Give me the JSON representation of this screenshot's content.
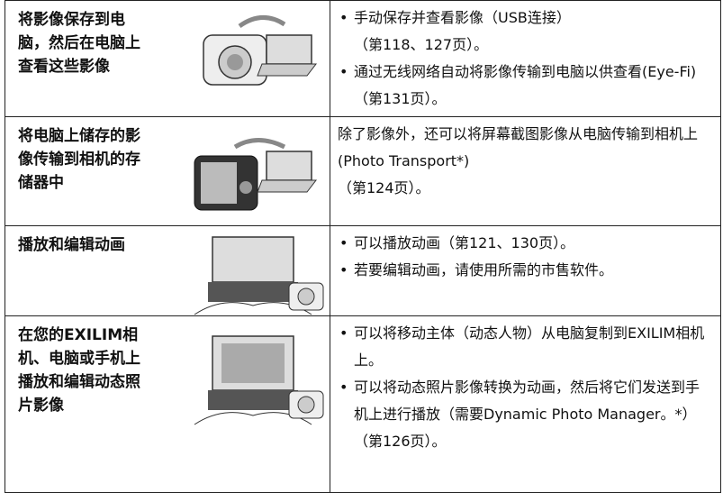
{
  "table": {
    "rows": [
      {
        "title": "将影像保存到电脑，然后在电脑上查看这些影像",
        "bullets": true,
        "items": [
          [
            "手动保存并查看影像（USB连接）",
            "（第118、127页）。"
          ],
          [
            "通过无线网络自动将影像传输到电脑以供查看(Eye-Fi)（第131页）。"
          ]
        ]
      },
      {
        "title": "将电脑上储存的影像传输到相机的存储器中",
        "bullets": false,
        "items": [
          [
            "除了影像外，还可以将屏幕截图影像从电脑传输到相机上(Photo Transport*)",
            "（第124页）。"
          ]
        ]
      },
      {
        "title": "播放和编辑动画",
        "bullets": true,
        "items": [
          [
            "可以播放动画（第121、130页）。"
          ],
          [
            "若要编辑动画，请使用所需的市售软件。"
          ]
        ]
      },
      {
        "title": "在您的EXILIM相机、电脑或手机上播放和编辑动态照片影像",
        "bullets": true,
        "items": [
          [
            "可以将移动主体（动态人物）从电脑复制到EXILIM相机上。"
          ],
          [
            "可以将动态照片影像转换为动画，然后将它们发送到手机上进行播放（需要Dynamic Photo Manager。*）（第126页）。"
          ]
        ]
      }
    ]
  }
}
